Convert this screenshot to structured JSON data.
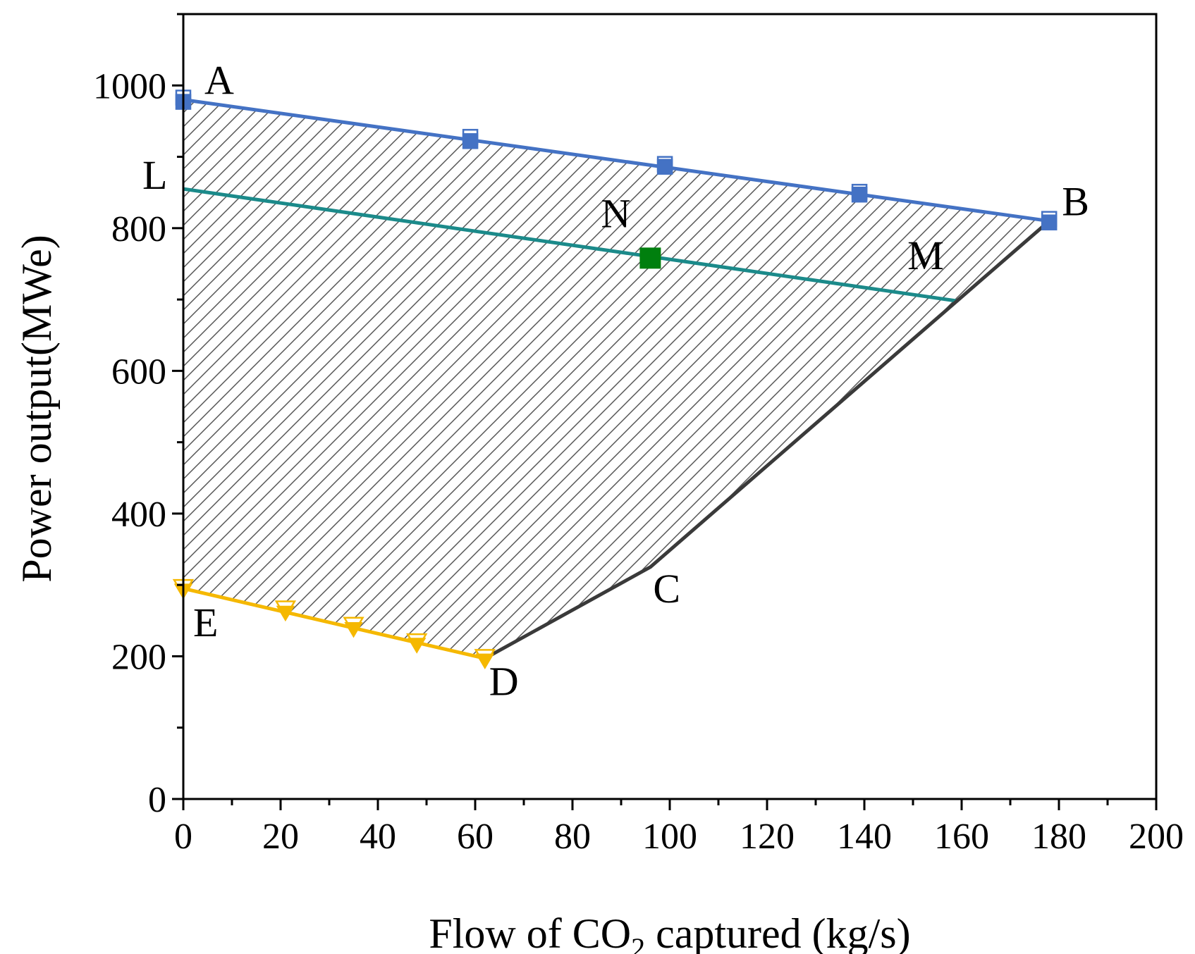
{
  "chart_data": {
    "type": "line",
    "xlabel_main": "Flow of CO",
    "xlabel_sub": "2",
    "xlabel_rest": " captured (kg/s)",
    "ylabel": "Power output(MWe)",
    "xlim": [
      0,
      200
    ],
    "ylim": [
      0,
      1100
    ],
    "xticks": [
      0,
      20,
      40,
      60,
      80,
      100,
      120,
      140,
      160,
      180,
      200
    ],
    "yticks": [
      0,
      200,
      400,
      600,
      800,
      1000
    ],
    "region": {
      "name": "feasible-operating-region",
      "points": [
        [
          0,
          980
        ],
        [
          178,
          810
        ],
        [
          96,
          325
        ],
        [
          62,
          197
        ],
        [
          0,
          295
        ]
      ]
    },
    "series": [
      {
        "name": "upper-boundary-AB",
        "color": "#4472C4",
        "x": [
          0,
          178
        ],
        "y": [
          980,
          810
        ],
        "markers_open": [
          [
            0,
            983
          ],
          [
            59,
            928
          ],
          [
            99,
            890
          ],
          [
            139,
            851
          ],
          [
            178,
            813
          ]
        ],
        "markers_filled": [
          [
            0,
            977
          ],
          [
            59,
            922
          ],
          [
            99,
            886
          ],
          [
            139,
            847
          ],
          [
            178,
            808
          ]
        ]
      },
      {
        "name": "constant-line-LM",
        "color": "#1B8A8A",
        "x": [
          0,
          159
        ],
        "y": [
          855,
          698
        ]
      },
      {
        "name": "boundary-BCD",
        "color": "#3A3A3A",
        "x": [
          178,
          96,
          62
        ],
        "y": [
          810,
          325,
          197
        ]
      },
      {
        "name": "lower-boundary-ED",
        "color": "#F5B800",
        "x": [
          0,
          62
        ],
        "y": [
          295,
          197
        ],
        "markers_open": [
          [
            0,
            298
          ],
          [
            21,
            268
          ],
          [
            35,
            245
          ],
          [
            48,
            222
          ],
          [
            62,
            200
          ]
        ],
        "markers_filled": [
          [
            0,
            293
          ],
          [
            21,
            262
          ],
          [
            35,
            239
          ],
          [
            48,
            217
          ],
          [
            62,
            195
          ]
        ]
      }
    ],
    "point_N": {
      "x": 96,
      "y": 758,
      "color": "#007F0E"
    },
    "labels": [
      {
        "text": "A",
        "x": 0,
        "y": 980
      },
      {
        "text": "B",
        "x": 178,
        "y": 810
      },
      {
        "text": "C",
        "x": 96,
        "y": 325
      },
      {
        "text": "D",
        "x": 62,
        "y": 197
      },
      {
        "text": "E",
        "x": 0,
        "y": 295
      },
      {
        "text": "L",
        "x": 0,
        "y": 855
      },
      {
        "text": "M",
        "x": 159,
        "y": 698
      },
      {
        "text": "N",
        "x": 96,
        "y": 758
      }
    ]
  }
}
